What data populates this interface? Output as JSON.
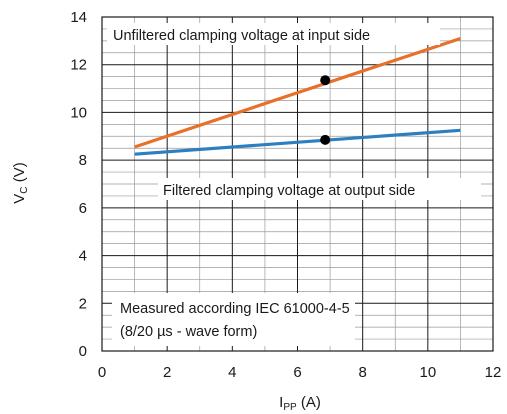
{
  "chart_data": {
    "type": "line",
    "xlabel": {
      "main": "I",
      "sub": "PP",
      "unit": " (A)"
    },
    "ylabel": {
      "main": "V",
      "sub": "C",
      "unit": " (V)"
    },
    "xlim": [
      0,
      12
    ],
    "ylim": [
      0,
      14
    ],
    "xticks": [
      0,
      2,
      4,
      6,
      8,
      10,
      12
    ],
    "yticks": [
      0,
      2,
      4,
      6,
      8,
      10,
      12,
      14
    ],
    "grid": true,
    "series": [
      {
        "name": "Unfiltered clamping voltage at input side",
        "color": "#e8702a",
        "x": [
          1,
          11
        ],
        "y": [
          8.55,
          13.1
        ],
        "marker_point": [
          6.85,
          11.35
        ]
      },
      {
        "name": "Filtered clamping voltage at output side",
        "color": "#2c7fc1",
        "x": [
          1,
          11
        ],
        "y": [
          8.25,
          9.25
        ],
        "marker_point": [
          6.85,
          8.85
        ]
      }
    ],
    "annotations": [
      "Measured according IEC 61000-4-5",
      "(8/20 µs - wave form)"
    ]
  }
}
